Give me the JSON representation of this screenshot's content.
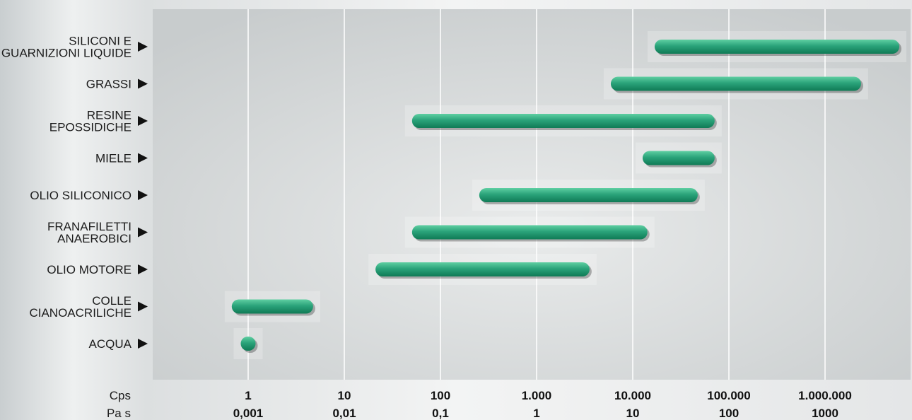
{
  "chart_data": {
    "type": "range-bar",
    "x_scale": "log10",
    "x_unit_primary": "Cps",
    "x_unit_secondary": "Pa s",
    "xlim": [
      0.3,
      8000000
    ],
    "x_ticks": [
      {
        "value": 1,
        "cps": "1",
        "pas": "0,001"
      },
      {
        "value": 10,
        "cps": "10",
        "pas": "0,01"
      },
      {
        "value": 100,
        "cps": "100",
        "pas": "0,1"
      },
      {
        "value": 1000,
        "cps": "1.000",
        "pas": "1"
      },
      {
        "value": 10000,
        "cps": "10.000",
        "pas": "10"
      },
      {
        "value": 100000,
        "cps": "100.000",
        "pas": "100"
      },
      {
        "value": 1000000,
        "cps": "1.000.000",
        "pas": "1000"
      }
    ],
    "grid": true,
    "colors": {
      "bar": "#2aa37a",
      "bar_dark": "#0f7a55",
      "bar_light": "#5fcfa2",
      "plot_bg": "#c8cccd",
      "grid": "#ffffff"
    },
    "series": [
      {
        "label": [
          "SILICONI E",
          "GUARNIZIONI LIQUIDE"
        ],
        "min": 20000,
        "max": 5000000
      },
      {
        "label": [
          "GRASSI"
        ],
        "min": 7000,
        "max": 2000000
      },
      {
        "label": [
          "RESINE",
          "EPOSSIDICHE"
        ],
        "min": 60,
        "max": 60000
      },
      {
        "label": [
          "MIELE"
        ],
        "min": 15000,
        "max": 60000
      },
      {
        "label": [
          "OLIO SILICONICO"
        ],
        "min": 300,
        "max": 40000
      },
      {
        "label": [
          "FRANAFILETTI",
          "ANAEROBICI"
        ],
        "min": 60,
        "max": 12000
      },
      {
        "label": [
          "OLIO MOTORE"
        ],
        "min": 25,
        "max": 3000
      },
      {
        "label": [
          "COLLE",
          "CIANOACRILICHE"
        ],
        "min": 0.8,
        "max": 4
      },
      {
        "label": [
          "ACQUA"
        ],
        "min": 1,
        "max": 1
      }
    ]
  }
}
